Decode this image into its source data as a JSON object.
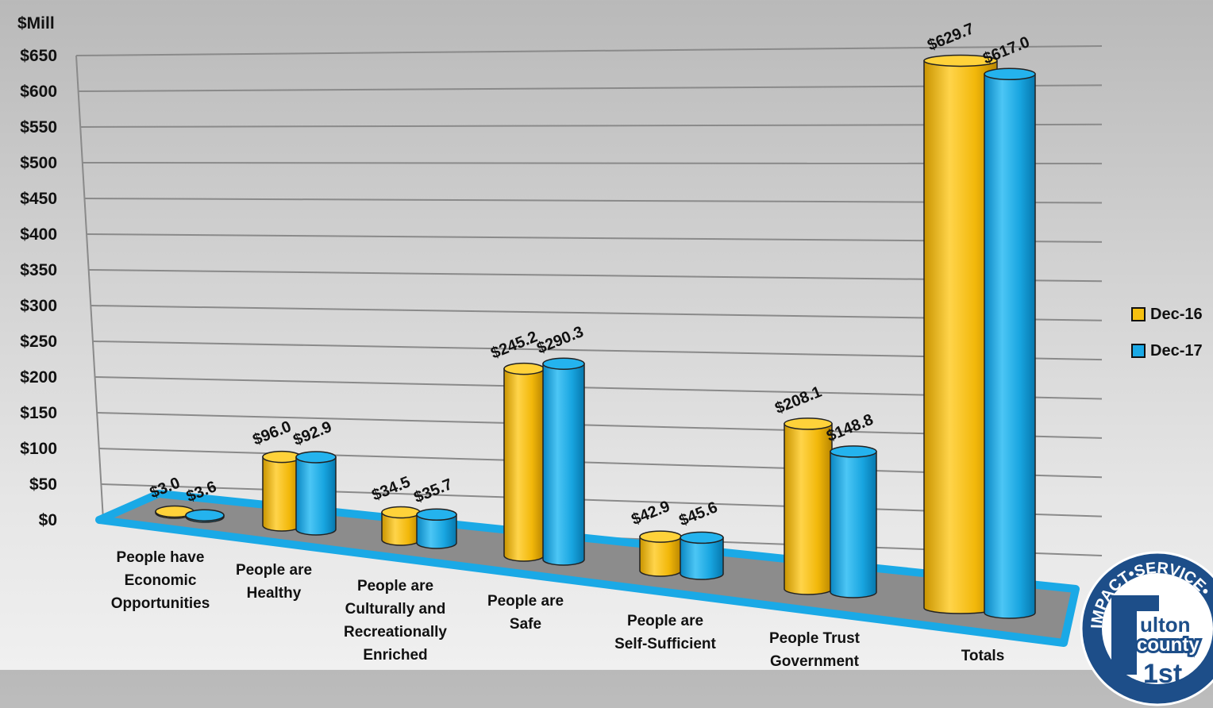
{
  "chart_data": {
    "type": "bar",
    "title": "",
    "ylabel": "$Mill",
    "ylim": [
      0,
      650
    ],
    "yticks": [
      "$0",
      "$50",
      "$100",
      "$150",
      "$200",
      "$250",
      "$300",
      "$350",
      "$400",
      "$450",
      "$500",
      "$550",
      "$600",
      "$650"
    ],
    "categories": [
      [
        "People have",
        "Economic",
        "Opportunities"
      ],
      [
        "People are",
        "Healthy"
      ],
      [
        "People are",
        "Culturally and",
        "Recreationally",
        "Enriched"
      ],
      [
        "People are",
        "Safe"
      ],
      [
        "People are",
        "Self-Sufficient"
      ],
      [
        "People Trust",
        "Government"
      ],
      [
        "Totals"
      ]
    ],
    "series": [
      {
        "name": "Dec-16",
        "color": "#f5c010",
        "values": [
          3.0,
          96.0,
          34.5,
          245.2,
          42.9,
          208.1,
          629.7
        ],
        "labels": [
          "$3.0",
          "$96.0",
          "$34.5",
          "$245.2",
          "$42.9",
          "$208.1",
          "$629.7"
        ]
      },
      {
        "name": "Dec-17",
        "color": "#1aa9e6",
        "values": [
          3.6,
          92.9,
          35.7,
          290.3,
          45.6,
          148.8,
          617.0
        ],
        "labels": [
          "$3.6",
          "$92.9",
          "$35.7",
          "$290.3",
          "$45.6",
          "$148.8",
          "$617.0"
        ]
      }
    ],
    "legend_position": "right",
    "grid": true
  },
  "logo": {
    "ring_text": "IMPACT•SERVICE•",
    "name_line1": "ulton",
    "name_line2": "county",
    "badge": "1st"
  }
}
